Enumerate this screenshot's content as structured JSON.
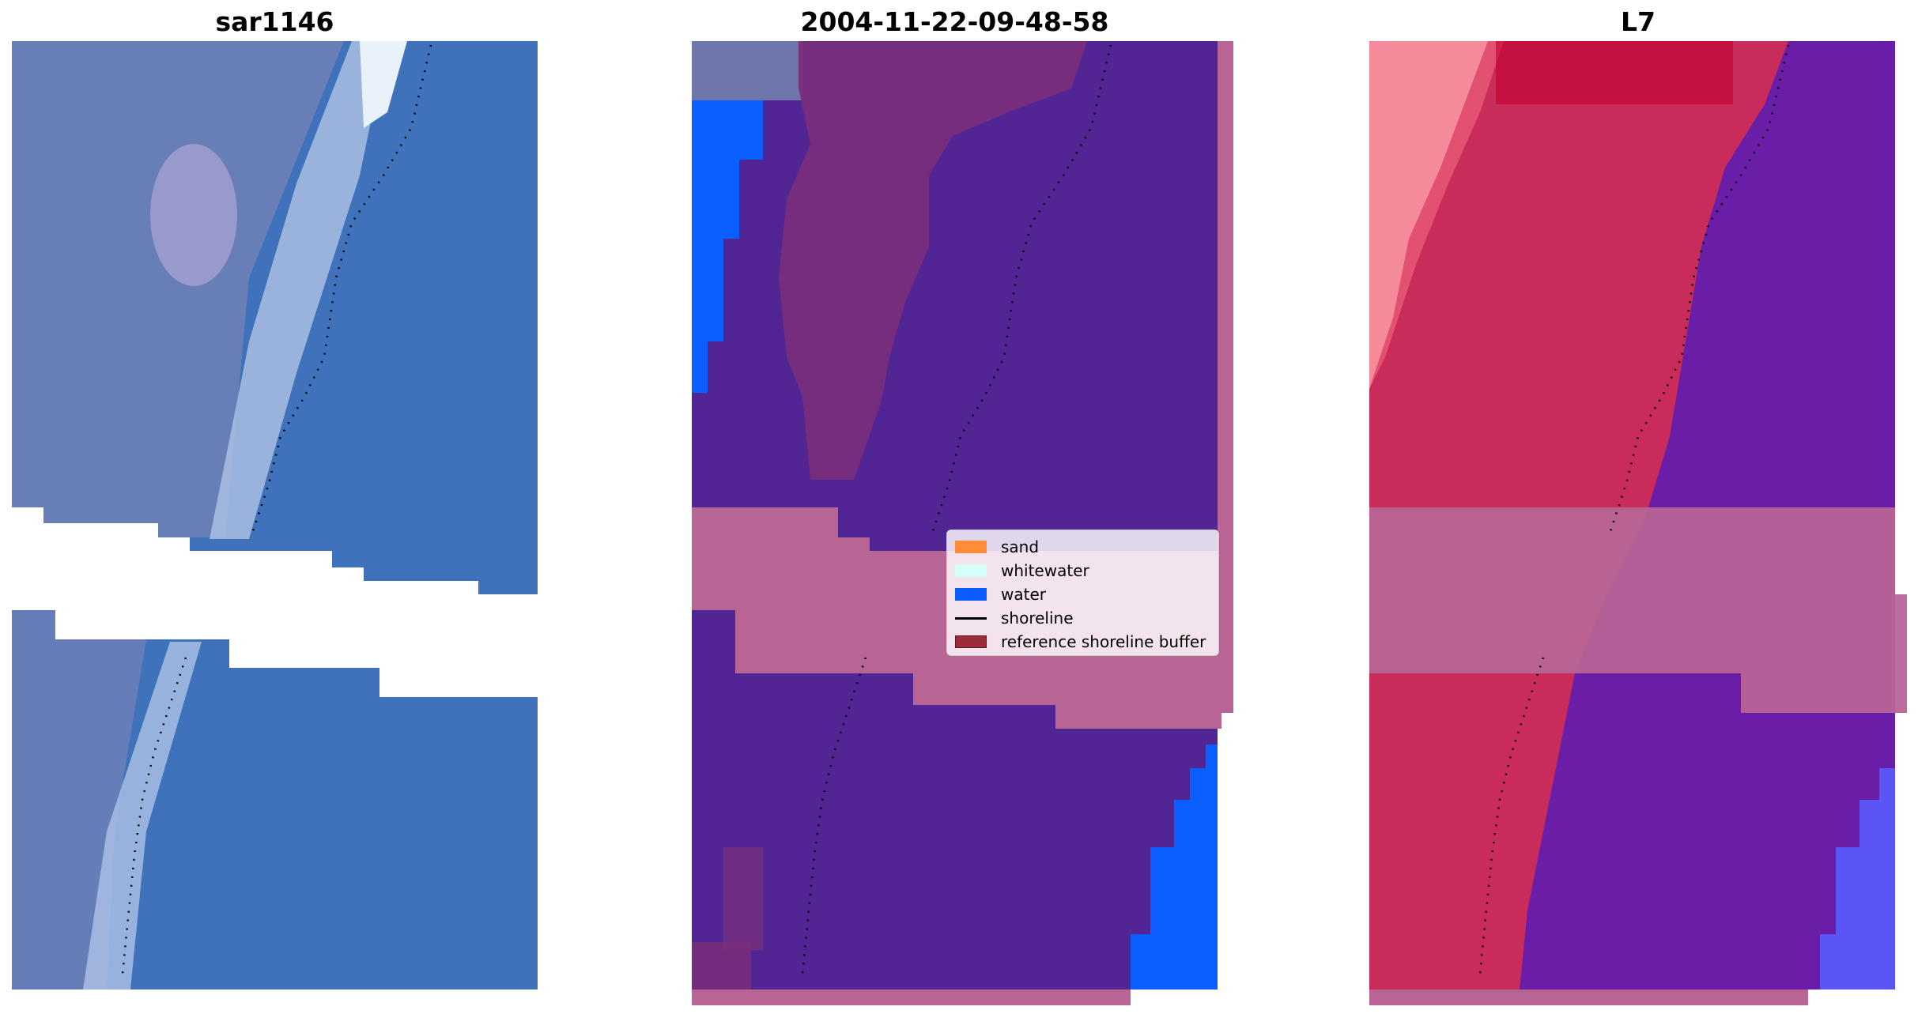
{
  "panels": [
    {
      "title": "sar1146"
    },
    {
      "title": "2004-11-22-09-48-58"
    },
    {
      "title": "L7"
    }
  ],
  "legend": {
    "items": [
      {
        "label": "sand",
        "color": "#ff8c3a"
      },
      {
        "label": "whitewater",
        "color": "#d6fff9"
      },
      {
        "label": "water",
        "color": "#0a5cff"
      },
      {
        "label": "shoreline",
        "color": "#000000"
      },
      {
        "label": "reference shoreline buffer",
        "color": "#9b2b3a"
      }
    ]
  }
}
